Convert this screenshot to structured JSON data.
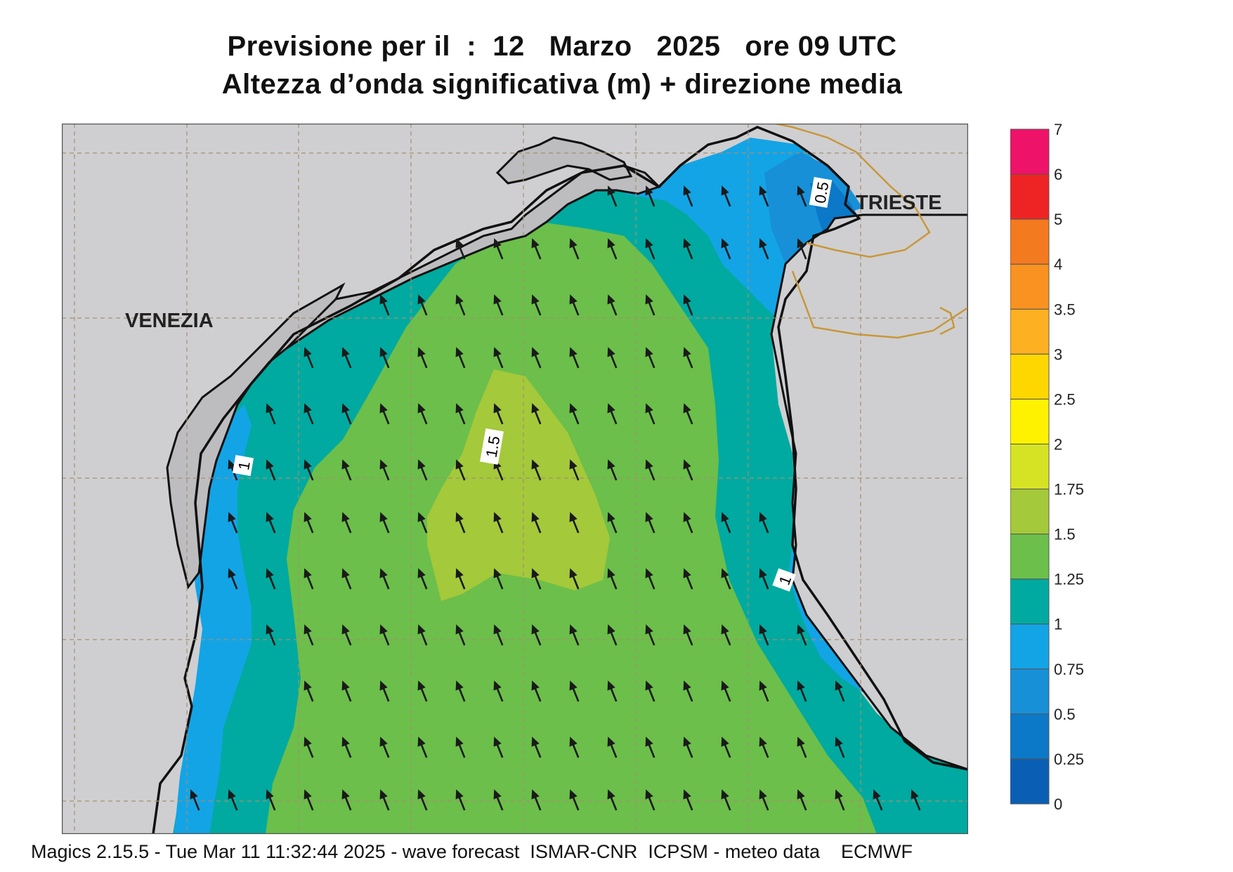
{
  "title": {
    "line1": "Previsione per il  :  12   Marzo   2025   ore 09 UTC",
    "line2": "Altezza d’onda significativa (m) + direzione media"
  },
  "cities": [
    {
      "name": "VENEZIA"
    },
    {
      "name": "TRIESTE"
    }
  ],
  "contour_labels": [
    "0.5",
    "1",
    "1.5",
    "1"
  ],
  "legend": {
    "ticks": [
      "0",
      "0.25",
      "0.5",
      "0.75",
      "1",
      "1.25",
      "1.5",
      "1.75",
      "2",
      "2.5",
      "3",
      "3.5",
      "4",
      "5",
      "6",
      "7"
    ],
    "colors": [
      "#0a5fb4",
      "#0b78c8",
      "#1790d8",
      "#13a4e6",
      "#00aaa0",
      "#6cbf4a",
      "#a4c93b",
      "#d6e324",
      "#fff200",
      "#ffd700",
      "#fdb022",
      "#f99220",
      "#f47a20",
      "#ee2424",
      "#ee1268"
    ]
  },
  "wave_direction": "north-northwest",
  "footer": "Magics 2.15.5 - Tue Mar 11 11:32:44 2025 - wave forecast  ISMAR-CNR  ICPSM - meteo data    ECMWF"
}
